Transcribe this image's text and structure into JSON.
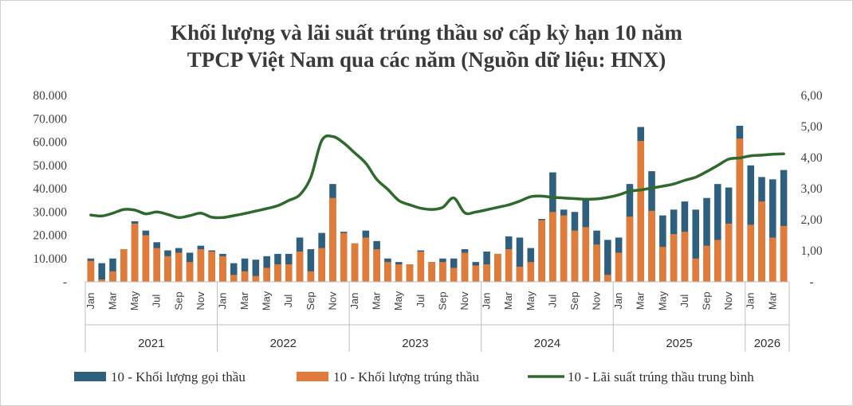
{
  "title_line1": "Khối lượng và lãi suất trúng thầu sơ cấp kỳ hạn 10 năm",
  "title_line2": "TPCP Việt Nam qua các năm (Nguồn dữ liệu: HNX)",
  "colors": {
    "offered": "#2e5f7f",
    "won": "#e07b39",
    "rate": "#2e6a2b"
  },
  "chart_data": {
    "type": "bar",
    "stacked": true,
    "title": "Khối lượng và lãi suất trúng thầu sơ cấp kỳ hạn 10 năm TPCP Việt Nam qua các năm (Nguồn dữ liệu: HNX)",
    "ylim": [
      0,
      80000
    ],
    "y2lim": [
      0,
      6
    ],
    "y_ticks": [
      "-",
      "10.000",
      "20.000",
      "30.000",
      "40.000",
      "50.000",
      "60.000",
      "70.000",
      "80.000"
    ],
    "y2_ticks": [
      "-",
      "1,00",
      "2,00",
      "3,00",
      "4,00",
      "5,00",
      "6,00"
    ],
    "years": [
      {
        "label": "2021",
        "months": 12
      },
      {
        "label": "2022",
        "months": 12
      },
      {
        "label": "2023",
        "months": 12
      },
      {
        "label": "2024",
        "months": 12
      },
      {
        "label": "2025",
        "months": 12
      },
      {
        "label": "2026",
        "months": 4
      }
    ],
    "month_labels": [
      "Jan",
      "",
      "Mar",
      "",
      "May",
      "",
      "Jul",
      "",
      "Sep",
      "",
      "Nov",
      ""
    ],
    "legend_position": "bottom",
    "series": [
      {
        "name": "10 - Khối lượng gọi thầu",
        "type": "bar",
        "values": [
          10000,
          8000,
          10000,
          14000,
          26000,
          22000,
          17000,
          13500,
          14500,
          12500,
          15500,
          13500,
          12000,
          8000,
          10000,
          9500,
          11000,
          12000,
          12000,
          19000,
          14000,
          21000,
          42000,
          21500,
          16500,
          22000,
          17500,
          10000,
          8500,
          7500,
          13500,
          8500,
          10000,
          10000,
          14000,
          8500,
          13000,
          12000,
          19500,
          19000,
          14500,
          27000,
          47000,
          31000,
          30000,
          36000,
          22000,
          18000,
          19000,
          42000,
          66500,
          47500,
          28500,
          31000,
          34500,
          31000,
          36000,
          42000,
          40500,
          67000,
          50000,
          45000,
          44000,
          48000
        ]
      },
      {
        "name": "10 - Khối lượng trúng thầu",
        "type": "bar",
        "values": [
          9000,
          1000,
          4500,
          14000,
          25000,
          20000,
          14500,
          11000,
          12500,
          8500,
          14000,
          13000,
          11000,
          3000,
          4500,
          2500,
          6000,
          7500,
          7500,
          13000,
          4500,
          14500,
          36000,
          21000,
          16500,
          19000,
          14000,
          8500,
          7500,
          7500,
          13000,
          8500,
          8500,
          6000,
          12500,
          7000,
          7500,
          12000,
          14000,
          6500,
          8500,
          26500,
          30000,
          28500,
          22000,
          23500,
          16000,
          3000,
          12500,
          28000,
          60500,
          30500,
          15000,
          20500,
          21500,
          10000,
          15500,
          18000,
          25000,
          61500,
          24500,
          34500,
          19000,
          24000
        ]
      },
      {
        "name": "10 - Lãi suất trúng thầu trung bình",
        "type": "line",
        "axis": "secondary",
        "values": [
          2.15,
          2.12,
          2.21,
          2.33,
          2.31,
          2.19,
          2.25,
          2.17,
          2.07,
          2.13,
          2.21,
          2.08,
          2.07,
          2.13,
          2.2,
          2.28,
          2.36,
          2.45,
          2.62,
          2.8,
          3.36,
          4.55,
          4.68,
          4.47,
          4.15,
          3.82,
          3.3,
          2.98,
          2.62,
          2.48,
          2.37,
          2.33,
          2.4,
          2.7,
          2.22,
          2.25,
          2.32,
          2.4,
          2.48,
          2.6,
          2.74,
          2.76,
          2.72,
          2.7,
          2.68,
          2.66,
          2.67,
          2.72,
          2.8,
          2.92,
          2.96,
          3.02,
          3.08,
          3.15,
          3.27,
          3.37,
          3.55,
          3.75,
          3.95,
          3.99,
          4.06,
          4.08,
          4.11,
          4.12
        ]
      }
    ]
  }
}
